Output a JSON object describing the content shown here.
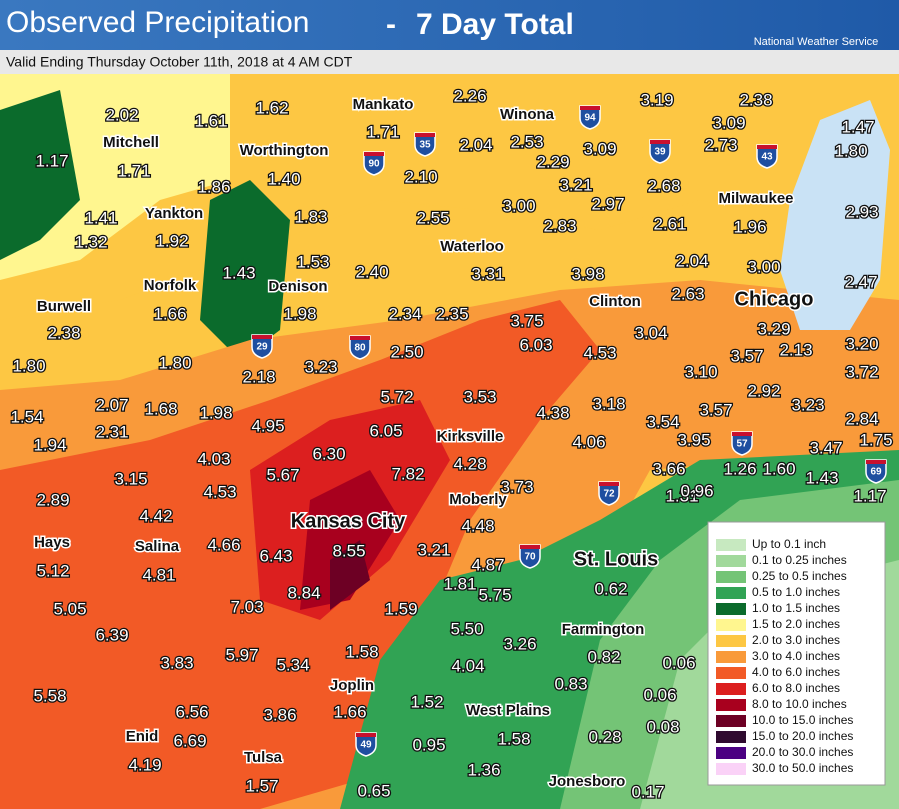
{
  "header": {
    "title": "Observed Precipitation",
    "separator": "-",
    "period": "7 Day Total",
    "agency": "National Weather Service"
  },
  "valid": "Valid Ending Thursday October 11th, 2018 at 4 AM CDT",
  "cities": [
    "Mankato",
    "Winona",
    "Mitchell",
    "Worthington",
    "Milwaukee",
    "Yankton",
    "Waterloo",
    "Norfolk",
    "Denison",
    "Burwell",
    "Clinton",
    "Chicago",
    "Kirksville",
    "Moberly",
    "Kansas City",
    "Hays",
    "Salina",
    "St. Louis",
    "Farmington",
    "Joplin",
    "West Plains",
    "Enid",
    "Tulsa",
    "Jonesboro"
  ],
  "values": [
    "2.02",
    "1.61",
    "1.62",
    "2.26",
    "3.19",
    "2.38",
    "1.71",
    "2.53",
    "3.09",
    "1.47",
    "2.04",
    "3.09",
    "2.73",
    "1.80",
    "1.17",
    "1.71",
    "2.29",
    "1.40",
    "2.10",
    "3.21",
    "2.68",
    "1.86",
    "2.97",
    "3.00",
    "1.41",
    "1.83",
    "2.55",
    "2.61",
    "1.96",
    "2.93",
    "1.32",
    "1.92",
    "2.83",
    "1.43",
    "1.53",
    "2.40",
    "3.31",
    "3.98",
    "2.04",
    "3.00",
    "2.47",
    "2.38",
    "1.66",
    "1.98",
    "2.34",
    "2.35",
    "3.75",
    "2.63",
    "3.04",
    "3.29",
    "1.80",
    "1.80",
    "2.18",
    "3.23",
    "2.50",
    "6.03",
    "4.53",
    "3.57",
    "2.13",
    "3.20",
    "3.10",
    "3.72",
    "5.72",
    "3.53",
    "2.92",
    "1.54",
    "2.07",
    "1.68",
    "1.98",
    "3.18",
    "3.57",
    "3.23",
    "2.84",
    "2.31",
    "4.95",
    "6.05",
    "4.38",
    "3.54",
    "1.94",
    "6.30",
    "4.06",
    "3.95",
    "3.47",
    "1.75",
    "4.03",
    "4.28",
    "7.82",
    "5.67",
    "3.15",
    "3.66",
    "1.26",
    "1.60",
    "1.43",
    "2.89",
    "4.53",
    "3.73",
    "1.31",
    "0.96",
    "1.17",
    "4.42",
    "4.48",
    "4.66",
    "8.55",
    "6.43",
    "3.21",
    "5.12",
    "4.81",
    "4.87",
    "1.81",
    "0.62",
    "8.84",
    "7.03",
    "5.75",
    "5.05",
    "1.59",
    "5.50",
    "6.39",
    "3.26",
    "5.97",
    "1.58",
    "0.82",
    "0.06",
    "3.83",
    "5.34",
    "4.04",
    "0.83",
    "5.58",
    "0.06",
    "1.52",
    "6.56",
    "3.86",
    "1.66",
    "0.08",
    "6.69",
    "1.58",
    "0.28",
    "0.95",
    "4.19",
    "1.36",
    "1.57",
    "0.65",
    "0.17"
  ],
  "interstates": [
    "94",
    "35",
    "90",
    "39",
    "43",
    "29",
    "80",
    "57",
    "69",
    "72",
    "70",
    "49"
  ],
  "legend": [
    {
      "label": "Up to 0.1 inch",
      "color": "#c7e9c0"
    },
    {
      "label": "0.1 to 0.25 inches",
      "color": "#a1d99b"
    },
    {
      "label": "0.25 to 0.5 inches",
      "color": "#74c476"
    },
    {
      "label": "0.5 to 1.0 inches",
      "color": "#31a354"
    },
    {
      "label": "1.0 to 1.5 inches",
      "color": "#0b6b2c"
    },
    {
      "label": "1.5 to 2.0 inches",
      "color": "#fff68f"
    },
    {
      "label": "2.0 to 3.0 inches",
      "color": "#fdc743"
    },
    {
      "label": "3.0 to 4.0 inches",
      "color": "#f99a3a"
    },
    {
      "label": "4.0 to 6.0 inches",
      "color": "#f25a26"
    },
    {
      "label": "6.0 to 8.0 inches",
      "color": "#dc1f1f"
    },
    {
      "label": "8.0 to 10.0 inches",
      "color": "#a8001e"
    },
    {
      "label": "10.0 to 15.0 inches",
      "color": "#6d0024"
    },
    {
      "label": "15.0 to 20.0 inches",
      "color": "#2f0a2f"
    },
    {
      "label": "20.0 to 30.0 inches",
      "color": "#4b0082"
    },
    {
      "label": "30.0 to 50.0 inches",
      "color": "#fad2f7"
    }
  ]
}
